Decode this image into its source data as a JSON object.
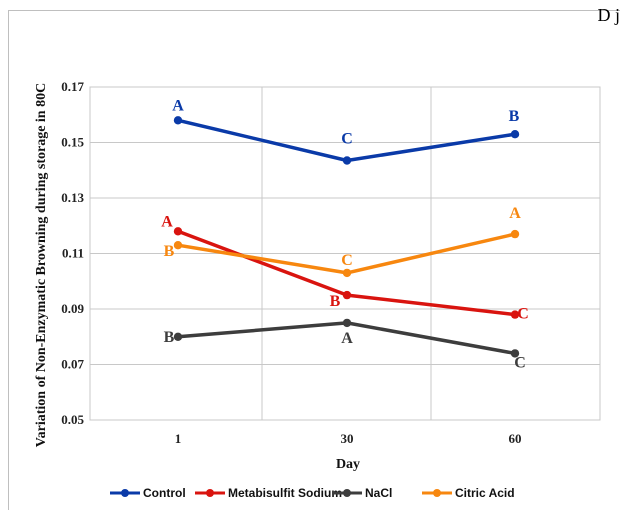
{
  "corner_text": "D j",
  "chart_data": {
    "type": "line",
    "xlabel": "Day",
    "ylabel": "Variation of Non-Enzymatic Browning during storage in 80C",
    "categories": [
      "1",
      "30",
      "60"
    ],
    "ylim": [
      0.05,
      0.17
    ],
    "yticks": [
      "0.05",
      "0.07",
      "0.09",
      "0.11",
      "0.13",
      "0.15",
      "0.17"
    ],
    "grid": true,
    "legend_position": "bottom",
    "series": [
      {
        "name": "Control",
        "color": "#0a3aa8",
        "values": [
          0.158,
          0.1435,
          0.153
        ],
        "labels": [
          "A",
          "C",
          "B"
        ]
      },
      {
        "name": "Metabisulfit Sodium",
        "color": "#d9140f",
        "values": [
          0.118,
          0.095,
          0.088
        ],
        "labels": [
          "A",
          "B",
          "C"
        ]
      },
      {
        "name": "NaCl",
        "color": "#3d3d3d",
        "values": [
          0.08,
          0.085,
          0.074
        ],
        "labels": [
          "B",
          "A",
          "C"
        ]
      },
      {
        "name": "Citric Acid",
        "color": "#f7870f",
        "values": [
          0.113,
          0.103,
          0.117
        ],
        "labels": [
          "B",
          "C",
          "A"
        ]
      }
    ]
  }
}
